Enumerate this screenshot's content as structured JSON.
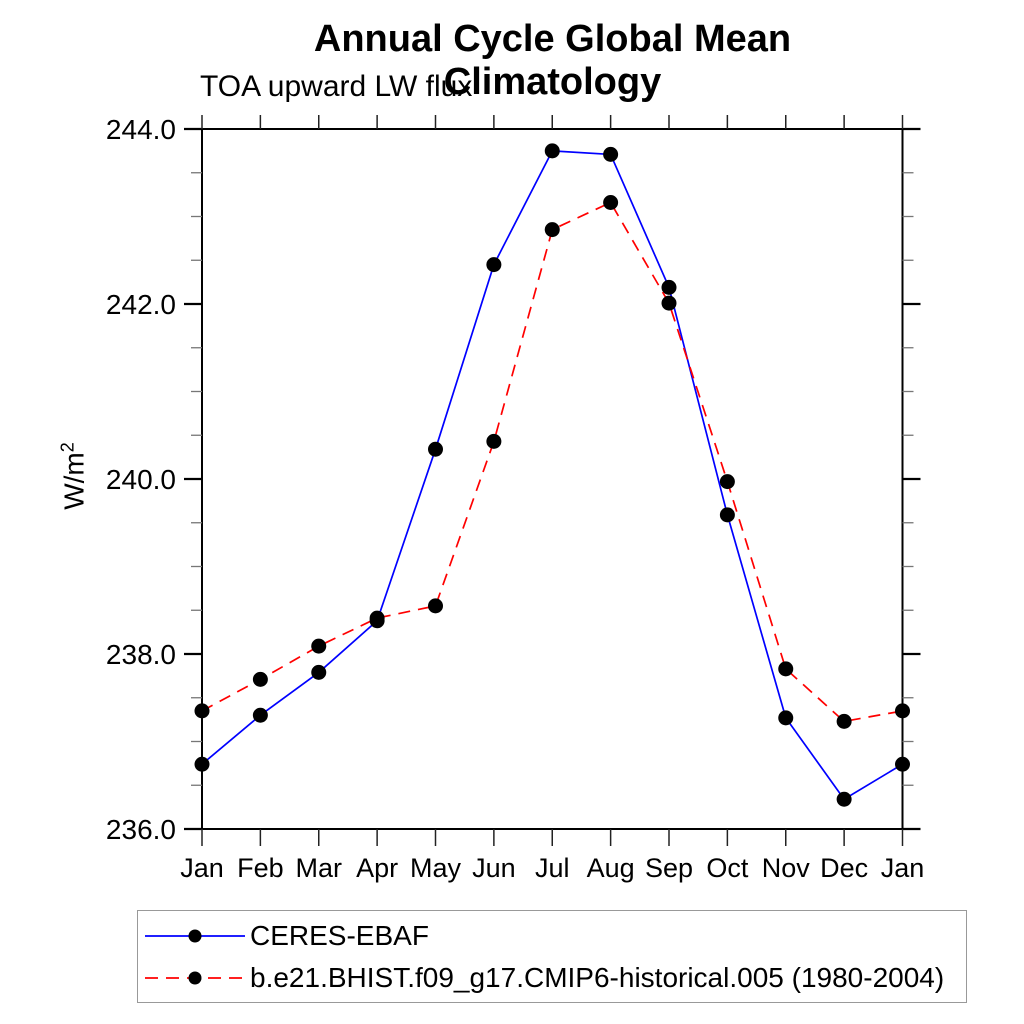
{
  "title": "Annual Cycle Global Mean Climatology",
  "subtitle": "TOA upward LW flux",
  "y_axis_label": {
    "base": "W/m",
    "exponent": "2"
  },
  "colors": {
    "series1": "#0000ff",
    "series2": "#ff0000",
    "marker": "#000000",
    "axis": "#000000",
    "minor_tick": "#777777",
    "month_tick": "#222222",
    "legend_border": "#999999"
  },
  "legend": {
    "items": [
      {
        "label": "CERES-EBAF",
        "line_style": "solid",
        "line_color": "#0000ff",
        "marker": "black-dot"
      },
      {
        "label": "b.e21.BHIST.f09_g17.CMIP6-historical.005 (1980-2004)",
        "line_style": "dashed",
        "line_color": "#ff0000",
        "marker": "black-dot"
      }
    ]
  },
  "chart_data": {
    "type": "line",
    "title": "Annual Cycle Global Mean Climatology",
    "subtitle": "TOA upward LW flux",
    "xlabel": "",
    "ylabel": "W/m^2",
    "categories": [
      "Jan",
      "Feb",
      "Mar",
      "Apr",
      "May",
      "Jun",
      "Jul",
      "Aug",
      "Sep",
      "Oct",
      "Nov",
      "Dec",
      "Jan"
    ],
    "ylim": [
      236.0,
      244.0
    ],
    "ytick_major": [
      236.0,
      238.0,
      240.0,
      242.0,
      244.0
    ],
    "ytick_minor_step": 0.5,
    "grid": false,
    "legend_position": "bottom-left-box",
    "series": [
      {
        "name": "CERES-EBAF",
        "color": "#0000ff",
        "style": "solid",
        "marker": "circle",
        "marker_color": "#000000",
        "values": [
          236.74,
          237.3,
          237.79,
          238.38,
          240.34,
          242.45,
          243.75,
          243.71,
          242.19,
          239.59,
          237.27,
          236.34,
          236.74
        ]
      },
      {
        "name": "b.e21.BHIST.f09_g17.CMIP6-historical.005 (1980-2004)",
        "color": "#ff0000",
        "style": "dashed",
        "marker": "circle",
        "marker_color": "#000000",
        "values": [
          237.35,
          237.71,
          238.09,
          238.41,
          238.55,
          240.43,
          242.85,
          243.16,
          242.01,
          239.97,
          237.83,
          237.23,
          237.35
        ]
      }
    ]
  }
}
